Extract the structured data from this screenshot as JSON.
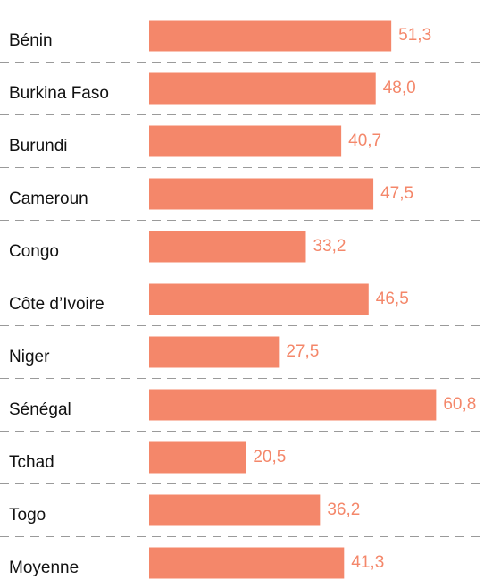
{
  "chart_data": {
    "type": "hbar",
    "categories": [
      "Bénin",
      "Burkina Faso",
      "Burundi",
      "Cameroun",
      "Congo",
      "Côte d’Ivoire",
      "Niger",
      "Sénégal",
      "Tchad",
      "Togo",
      "Moyenne"
    ],
    "values": [
      51.3,
      48.0,
      40.7,
      47.5,
      33.2,
      46.5,
      27.5,
      60.8,
      20.5,
      36.2,
      41.3
    ],
    "value_labels": [
      "51,3",
      "48,0",
      "40,7",
      "47,5",
      "33,2",
      "46,5",
      "27,5",
      "60,8",
      "20,5",
      "36,2",
      "41,3"
    ],
    "color": "#f4876a",
    "xlim": [
      0,
      70
    ]
  }
}
